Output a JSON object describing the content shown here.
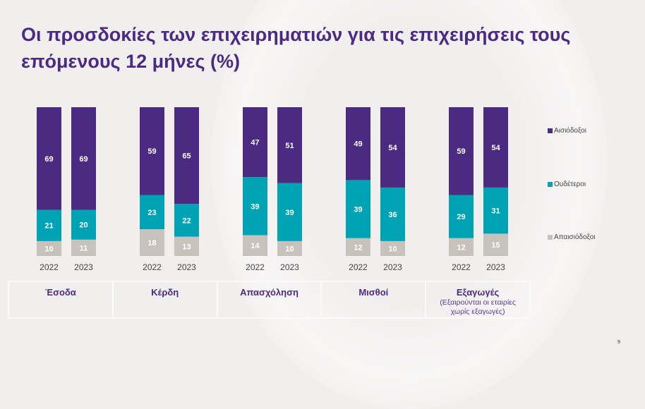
{
  "title": "Οι προσδοκίες των επιχειρηματιών για τις επιχειρήσεις τους επόμενους 12 μήνες (%)",
  "page_number": "9",
  "chart_data": {
    "type": "bar",
    "stacked": true,
    "title": "Οι προσδοκίες των επιχειρηματιών για τις επιχειρήσεις τους επόμενους 12 μήνες (%)",
    "groups": [
      {
        "name": "Έσοδα",
        "note": ""
      },
      {
        "name": "Κέρδη",
        "note": ""
      },
      {
        "name": "Απασχόληση",
        "note": ""
      },
      {
        "name": "Μισθοί",
        "note": ""
      },
      {
        "name": "Εξαγωγές",
        "note": "(Εξαιρούνται οι εταιρίες χωρίς εξαγωγές)"
      }
    ],
    "years": [
      "2022",
      "2023"
    ],
    "series": [
      {
        "name": "Απαισιόδοξοι",
        "color": "#c8c2bc",
        "values": [
          [
            10,
            11
          ],
          [
            18,
            13
          ],
          [
            14,
            10
          ],
          [
            12,
            10
          ],
          [
            12,
            15
          ]
        ]
      },
      {
        "name": "Ουδέτεροι",
        "color": "#00a3b4",
        "values": [
          [
            21,
            20
          ],
          [
            23,
            22
          ],
          [
            39,
            39
          ],
          [
            39,
            36
          ],
          [
            29,
            31
          ]
        ]
      },
      {
        "name": "Αισιόδοξοι",
        "color": "#4b2a82",
        "values": [
          [
            69,
            69
          ],
          [
            59,
            65
          ],
          [
            47,
            51
          ],
          [
            49,
            54
          ],
          [
            59,
            54
          ]
        ]
      }
    ],
    "legend": [
      "Αισιόδοξοι",
      "Ουδέτεροι",
      "Απαισιόδοξοι"
    ],
    "legend_position": "right",
    "ylim": [
      0,
      100
    ],
    "grid": false
  }
}
